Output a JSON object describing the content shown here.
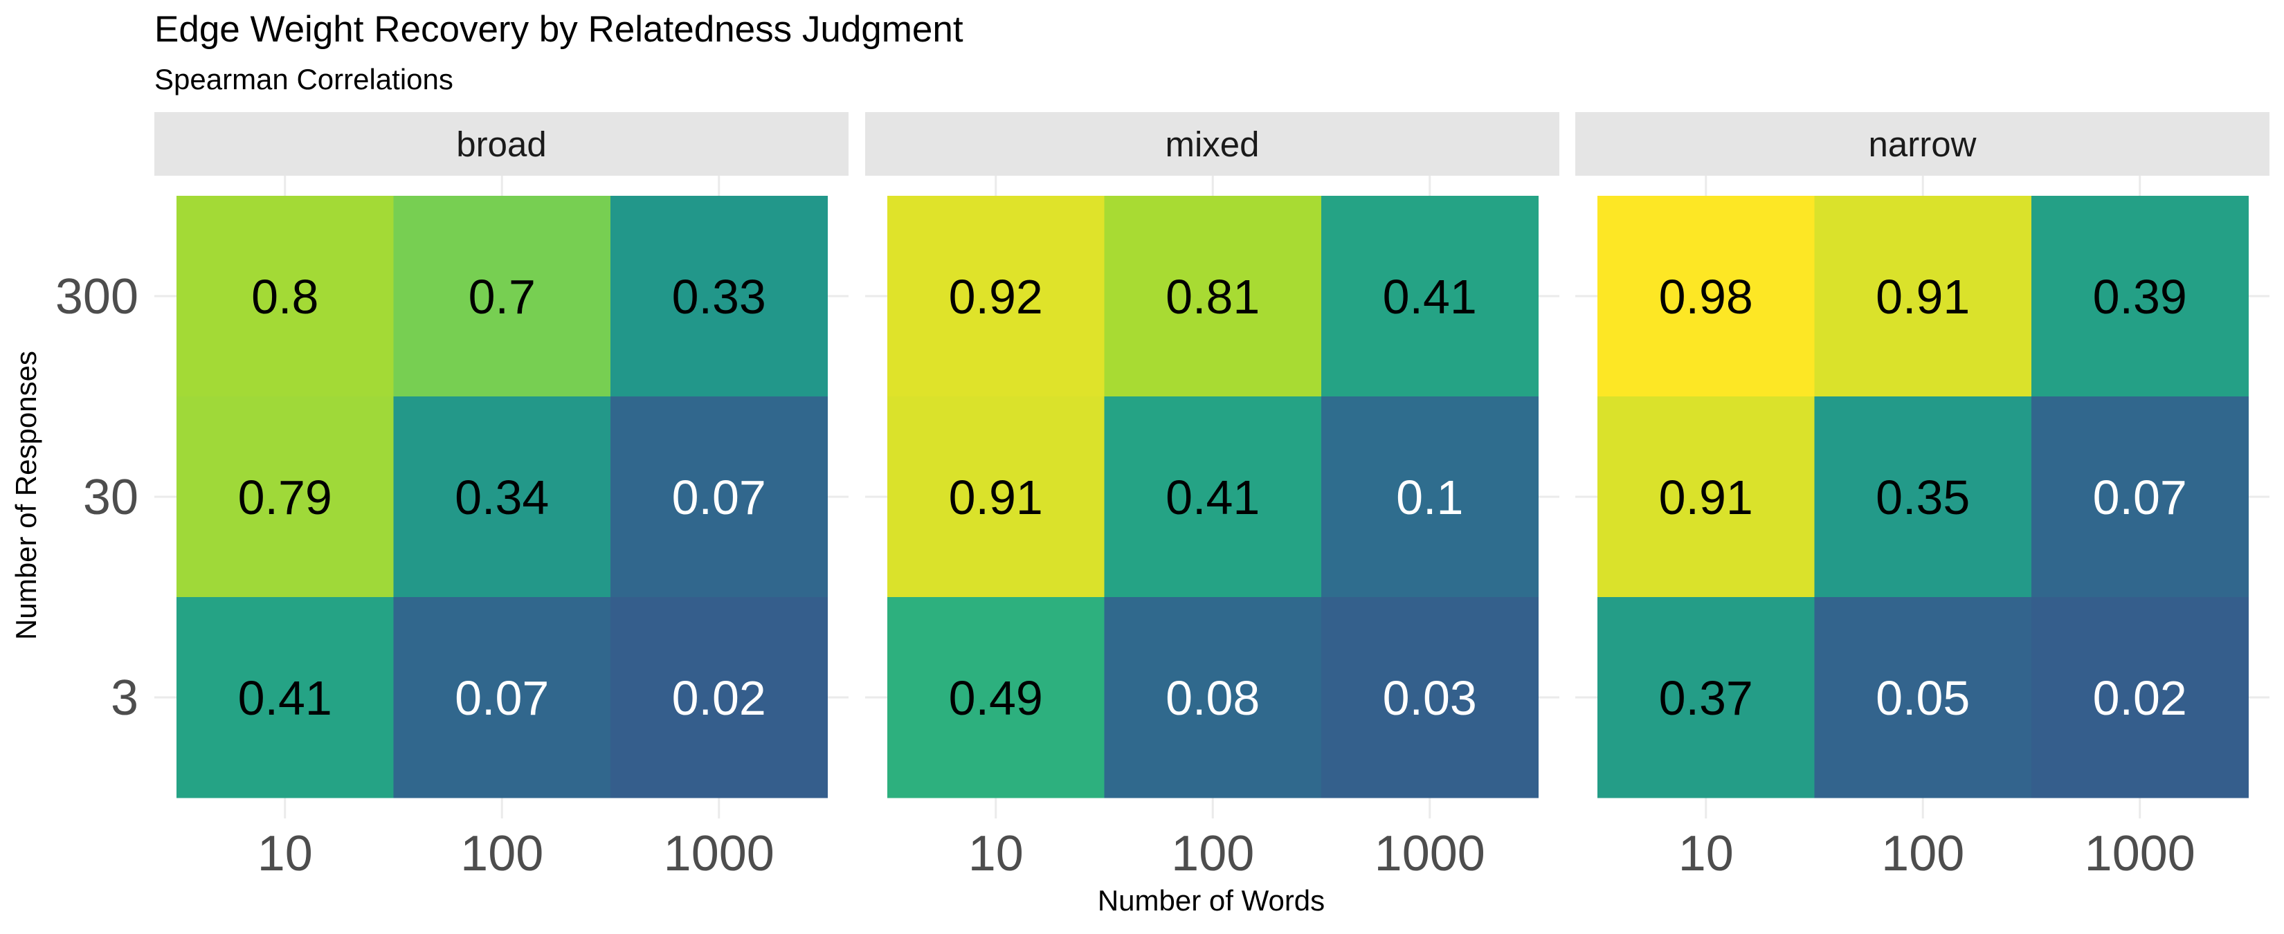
{
  "chart_data": {
    "type": "heatmap",
    "title": "Edge Weight Recovery by Relatedness Judgment",
    "subtitle": "Spearman Correlations",
    "xlabel": "Number of Words",
    "ylabel": "Number of Responses",
    "x_categories": [
      "10",
      "100",
      "1000"
    ],
    "y_categories": [
      "300",
      "30",
      "3"
    ],
    "facets": [
      {
        "label": "broad",
        "values": [
          [
            0.8,
            0.7,
            0.33
          ],
          [
            0.79,
            0.34,
            0.07
          ],
          [
            0.41,
            0.07,
            0.02
          ]
        ],
        "labels": [
          [
            "0.8",
            "0.7",
            "0.33"
          ],
          [
            "0.79",
            "0.34",
            "0.07"
          ],
          [
            "0.41",
            "0.07",
            "0.02"
          ]
        ]
      },
      {
        "label": "mixed",
        "values": [
          [
            0.92,
            0.81,
            0.41
          ],
          [
            0.91,
            0.41,
            0.1
          ],
          [
            0.49,
            0.08,
            0.03
          ]
        ],
        "labels": [
          [
            "0.92",
            "0.81",
            "0.41"
          ],
          [
            "0.91",
            "0.41",
            "0.1"
          ],
          [
            "0.49",
            "0.08",
            "0.03"
          ]
        ]
      },
      {
        "label": "narrow",
        "values": [
          [
            0.98,
            0.91,
            0.39
          ],
          [
            0.91,
            0.35,
            0.07
          ],
          [
            0.37,
            0.05,
            0.02
          ]
        ],
        "labels": [
          [
            "0.98",
            "0.91",
            "0.39"
          ],
          [
            "0.91",
            "0.35",
            "0.07"
          ],
          [
            "0.37",
            "0.05",
            "0.02"
          ]
        ]
      }
    ],
    "colormap": "viridis",
    "legend": "none",
    "grid": true
  }
}
